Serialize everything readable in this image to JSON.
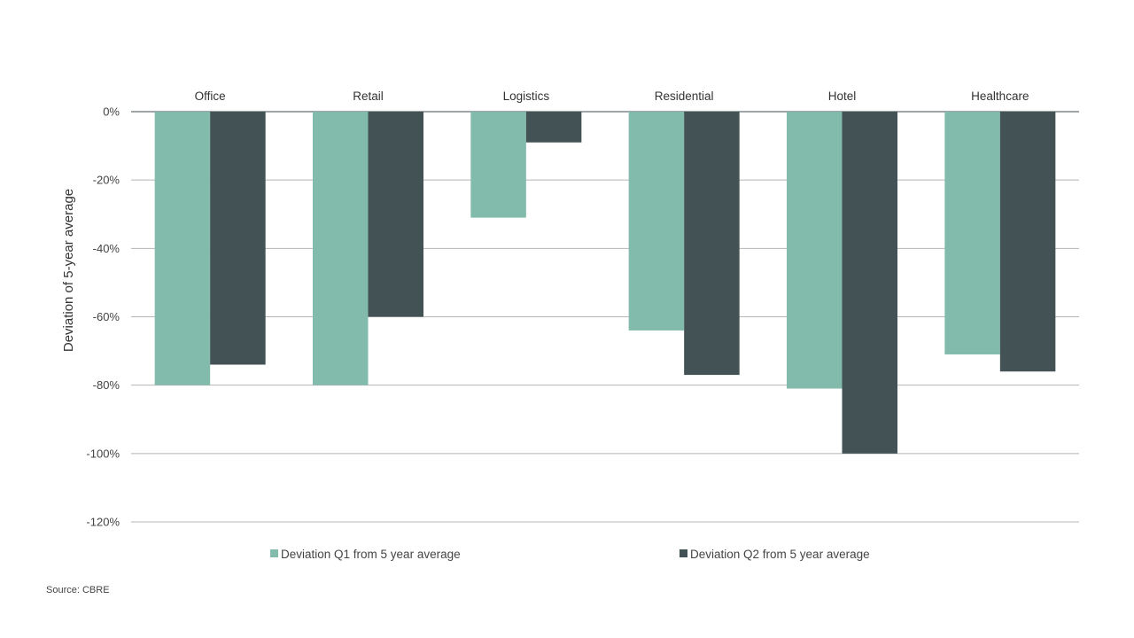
{
  "chart_data": {
    "type": "bar",
    "categories": [
      "Office",
      "Retail",
      "Logistics",
      "Residential",
      "Hotel",
      "Healthcare"
    ],
    "series": [
      {
        "name": "Deviation Q1 from 5 year average",
        "color": "#82bbac",
        "values": [
          -80,
          -80,
          -31,
          -64,
          -81,
          -71
        ]
      },
      {
        "name": "Deviation Q2 from 5 year average",
        "color": "#435254",
        "values": [
          -74,
          -60,
          -9,
          -77,
          -100,
          -76
        ]
      }
    ],
    "ylabel": "Deviation of 5-year average",
    "ylim": [
      -120,
      0
    ],
    "yticks": [
      0,
      -20,
      -40,
      -60,
      -80,
      -100,
      -120
    ],
    "ytick_labels": [
      "0%",
      "-20%",
      "-40%",
      "-60%",
      "-80%",
      "-100%",
      "-120%"
    ],
    "category_axis_position": "top",
    "grid": true,
    "legend_position": "bottom"
  },
  "source": "Source: CBRE"
}
